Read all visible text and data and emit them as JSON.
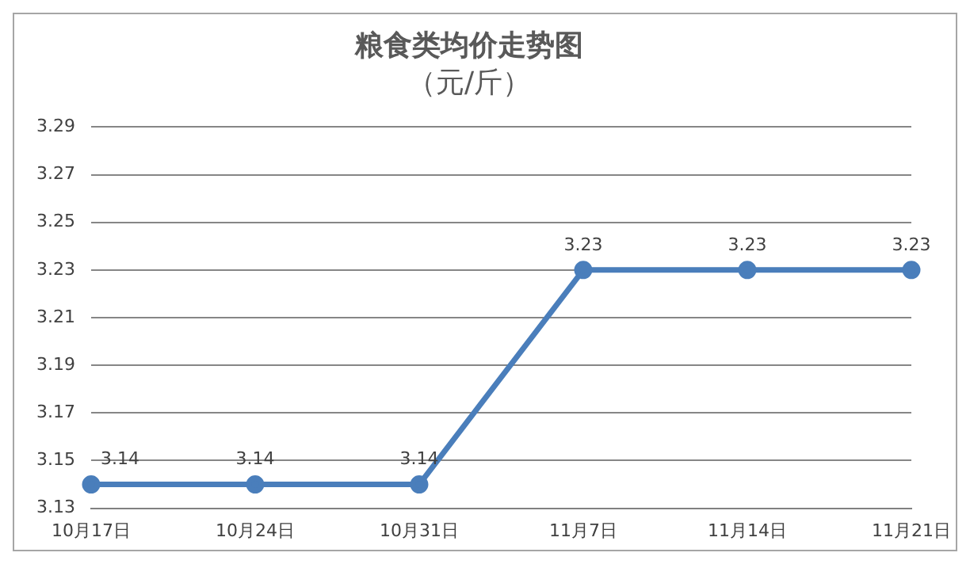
{
  "chart_data": {
    "type": "line",
    "title": "粮食类均价走势图",
    "subtitle": "（元/斤）",
    "categories": [
      "10月17日",
      "10月24日",
      "10月31日",
      "11月7日",
      "11月14日",
      "11月21日"
    ],
    "series": [
      {
        "color": "#4a7ebb",
        "values": [
          3.14,
          3.14,
          3.14,
          3.23,
          3.23,
          3.23
        ]
      }
    ],
    "ylim": [
      3.13,
      3.29
    ],
    "yticks": [
      3.13,
      3.15,
      3.17,
      3.19,
      3.21,
      3.23,
      3.25,
      3.27,
      3.29
    ],
    "grid": "y",
    "legend": false,
    "marker": "circle",
    "line_style": "solid",
    "data_labels": true
  }
}
